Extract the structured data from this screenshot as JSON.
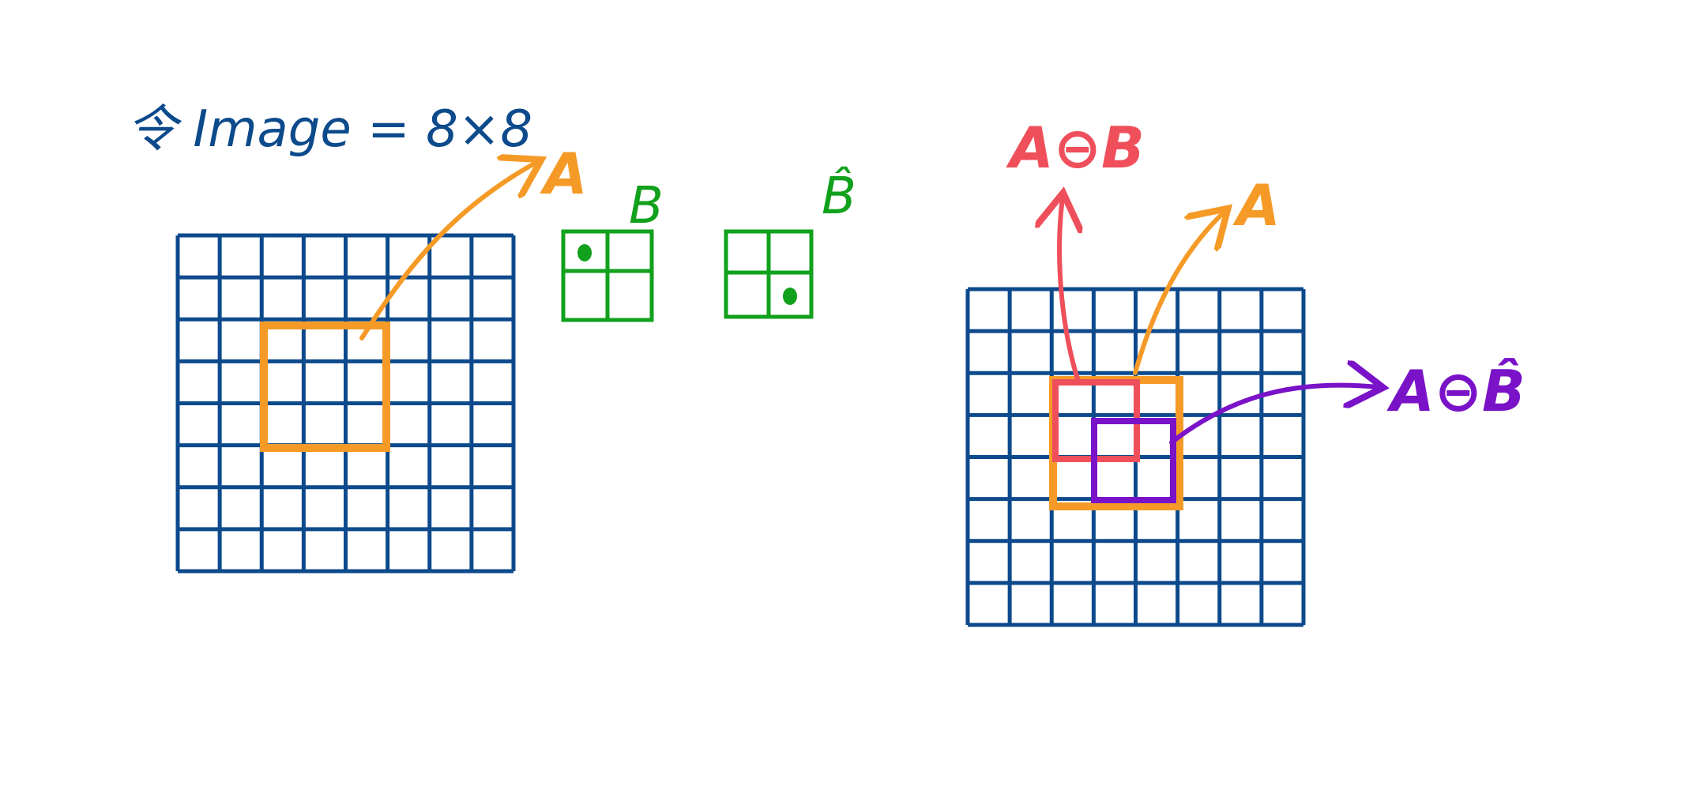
{
  "title": "令 Image = 8×8",
  "grid_size": 8,
  "colors": {
    "grid": "#0d4a8c",
    "orange": "#f59a27",
    "green": "#11a11c",
    "red": "#ef4f5a",
    "purple": "#7a12c8"
  },
  "left": {
    "label_A": "A"
  },
  "kernels": {
    "B": {
      "label": "B"
    },
    "B_hat": {
      "label": "B̂"
    }
  },
  "right": {
    "label_erosion_B": "A⊖B",
    "label_A": "A",
    "label_erosion_Bhat": "A⊖B̂"
  }
}
